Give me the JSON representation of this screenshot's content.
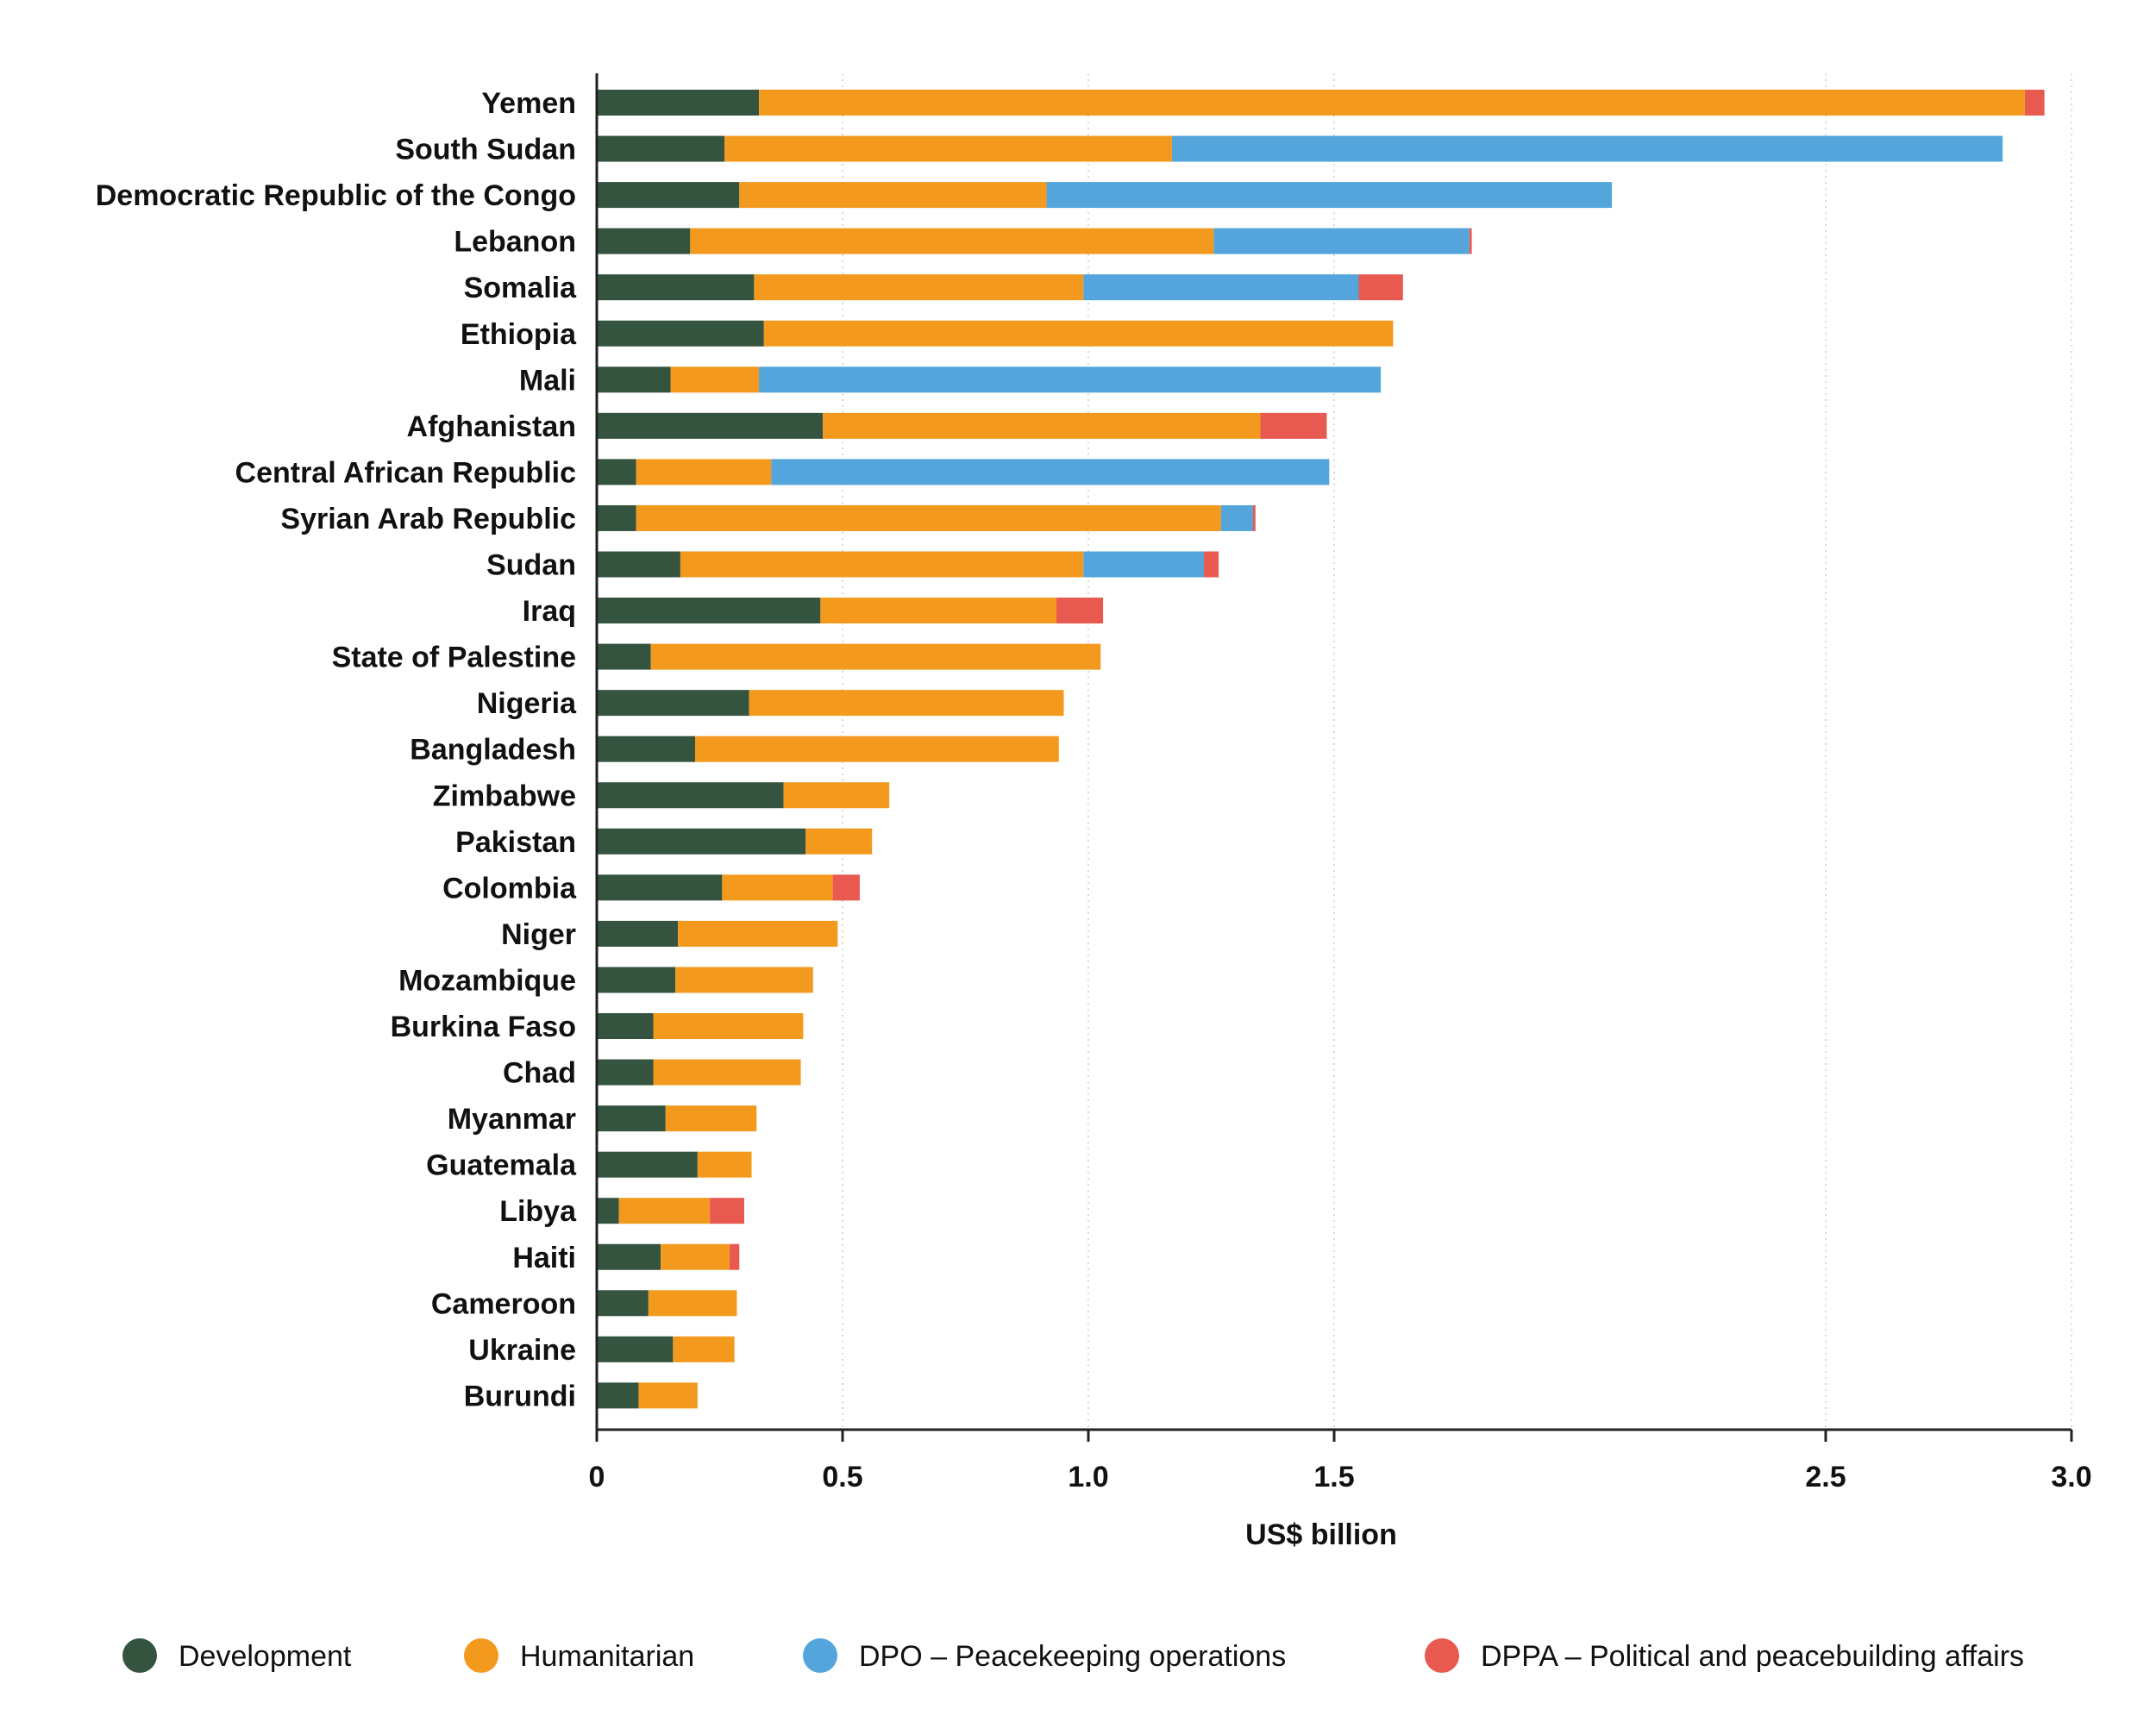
{
  "chart_data": {
    "type": "bar",
    "orientation": "horizontal",
    "stacked": true,
    "title": "",
    "xlabel": "US$ billion",
    "ylabel": "",
    "xlim": [
      0,
      3.0
    ],
    "x_ticks": [
      0,
      0.5,
      1.0,
      1.5,
      2.5,
      3.0
    ],
    "x_tick_labels": [
      "0",
      "0.5",
      "1.0",
      "1.5",
      "2.5",
      "3.0"
    ],
    "grid": "vertical dotted",
    "legend_position": "bottom",
    "categories": [
      "Yemen",
      "South Sudan",
      "Democratic Republic of the Congo",
      "Lebanon",
      "Somalia",
      "Ethiopia",
      "Mali",
      "Afghanistan",
      "Central African Republic",
      "Syrian Arab Republic",
      "Sudan",
      "Iraq",
      "State of Palestine",
      "Nigeria",
      "Bangladesh",
      "Zimbabwe",
      "Pakistan",
      "Colombia",
      "Niger",
      "Mozambique",
      "Burkina Faso",
      "Chad",
      "Myanmar",
      "Guatemala",
      "Libya",
      "Haiti",
      "Cameroon",
      "Ukraine",
      "Burundi"
    ],
    "series": [
      {
        "name": "Development",
        "color": "#34543f",
        "values": [
          0.33,
          0.26,
          0.29,
          0.19,
          0.32,
          0.34,
          0.15,
          0.46,
          0.08,
          0.08,
          0.17,
          0.455,
          0.11,
          0.31,
          0.2,
          0.38,
          0.425,
          0.255,
          0.165,
          0.16,
          0.115,
          0.115,
          0.14,
          0.205,
          0.045,
          0.13,
          0.105,
          0.155,
          0.085
        ]
      },
      {
        "name": "Humanitarian",
        "color": "#f39a1e",
        "values": [
          2.575,
          0.91,
          0.625,
          1.065,
          0.67,
          1.28,
          0.18,
          0.89,
          0.275,
          1.19,
          0.82,
          0.48,
          0.915,
          0.64,
          0.74,
          0.215,
          0.135,
          0.225,
          0.325,
          0.28,
          0.305,
          0.3,
          0.185,
          0.11,
          0.185,
          0.14,
          0.18,
          0.125,
          0.12
        ]
      },
      {
        "name": "DPO – Peacekeeping operations",
        "color": "#53a5dc",
        "values": [
          0,
          1.69,
          1.15,
          0.52,
          0.56,
          0,
          1.265,
          0,
          1.135,
          0.065,
          0.245,
          0,
          0,
          0,
          0,
          0,
          0,
          0,
          0,
          0,
          0,
          0,
          0,
          0,
          0,
          0,
          0,
          0,
          0
        ]
      },
      {
        "name": "DPPA – Political and peacebuilding affairs",
        "color": "#e85a4f",
        "values": [
          0.04,
          0,
          0,
          0.005,
          0.09,
          0,
          0,
          0.135,
          0,
          0.005,
          0.03,
          0.095,
          0,
          0,
          0,
          0,
          0,
          0.055,
          0,
          0,
          0,
          0,
          0,
          0,
          0.07,
          0.02,
          0,
          0,
          0
        ]
      }
    ]
  }
}
